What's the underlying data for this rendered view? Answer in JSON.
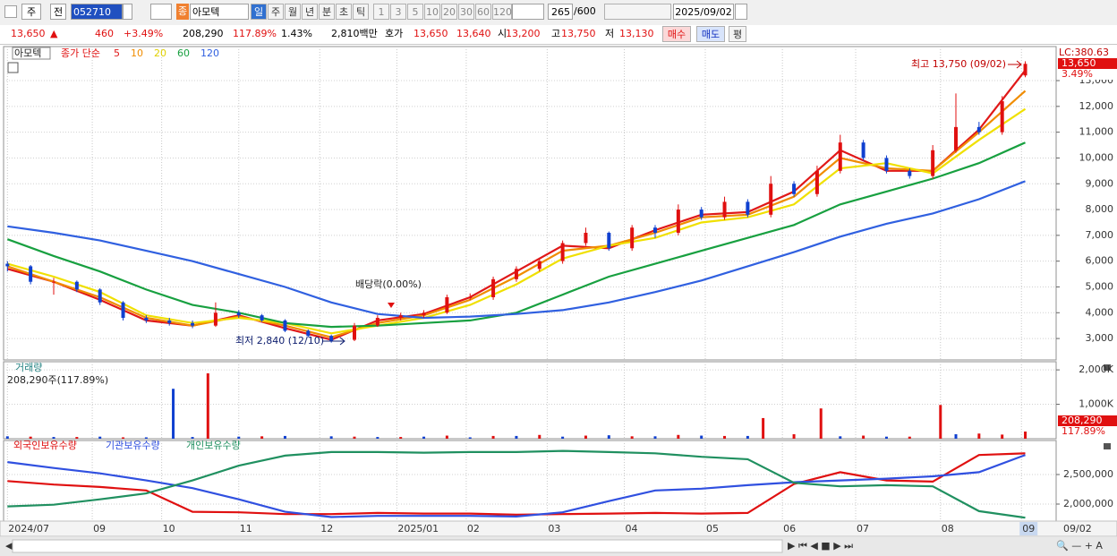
{
  "toolbar": {
    "market": "주",
    "kind": "전",
    "code": "052710",
    "badge": "종",
    "name": "아모텍",
    "periods": [
      "일",
      "주",
      "월",
      "년",
      "분",
      "초",
      "틱"
    ],
    "intervals": [
      "1",
      "3",
      "5",
      "10",
      "20",
      "30",
      "60",
      "120"
    ],
    "count": "265",
    "max": "/600",
    "date": "2025/09/02"
  },
  "quote": {
    "price": "13,650",
    "arrow": "▲",
    "change": "460",
    "rate": "+3.49%",
    "volume": "208,290",
    "volume_ratio": "117.89%",
    "turnover": "1.43%",
    "amount": "2,810백만",
    "hoga_label": "호가",
    "ask": "13,650",
    "bid": "13,640",
    "open_label": "시",
    "open": "13,200",
    "high_label": "고",
    "high": "13,750",
    "low_label": "저",
    "low": "13,130",
    "buy": "매수",
    "sell": "매도",
    "avg": "평"
  },
  "chart_data": [
    {
      "type": "candlestick",
      "title": "아모텍",
      "legend_title": "종가 단순",
      "xlim": [
        -1,
        272
      ],
      "xticks": [
        {
          "value": 0,
          "label": "2024/07"
        },
        {
          "value": 22,
          "label": "09"
        },
        {
          "value": 40,
          "label": "10"
        },
        {
          "value": 60,
          "label": "11"
        },
        {
          "value": 81,
          "label": "12"
        },
        {
          "value": 101,
          "label": "2025/01"
        },
        {
          "value": 119,
          "label": "02"
        },
        {
          "value": 140,
          "label": "03"
        },
        {
          "value": 160,
          "label": "04"
        },
        {
          "value": 181,
          "label": "05"
        },
        {
          "value": 201,
          "label": "06"
        },
        {
          "value": 220,
          "label": "07"
        },
        {
          "value": 242,
          "label": "08"
        },
        {
          "value": 263,
          "label": "09"
        }
      ],
      "x_cursor_label": "09/02",
      "ylim": [
        2170,
        14320
      ],
      "yticks": [
        {
          "value": 3000,
          "label": "3,000"
        },
        {
          "value": 4000,
          "label": "4,000"
        },
        {
          "value": 5000,
          "label": "5,000"
        },
        {
          "value": 6000,
          "label": "6,000"
        },
        {
          "value": 7000,
          "label": "7,000"
        },
        {
          "value": 8000,
          "label": "8,000"
        },
        {
          "value": 9000,
          "label": "9,000"
        },
        {
          "value": 10000,
          "label": "10,000"
        },
        {
          "value": 11000,
          "label": "11,000"
        },
        {
          "value": 12000,
          "label": "12,000"
        },
        {
          "value": 13000,
          "label": "13,000"
        }
      ],
      "up_color": "#e01010",
      "down_color": "#1040d0",
      "candles": {
        "x": [
          0,
          6,
          12,
          18,
          24,
          30,
          36,
          42,
          48,
          54,
          60,
          66,
          72,
          78,
          84,
          90,
          96,
          102,
          108,
          114,
          120,
          126,
          132,
          138,
          144,
          150,
          156,
          162,
          168,
          174,
          180,
          186,
          192,
          198,
          204,
          210,
          216,
          222,
          228,
          234,
          240,
          246,
          252,
          258,
          264
        ],
        "open": [
          5900,
          5800,
          5200,
          5200,
          4900,
          4400,
          3800,
          3700,
          3600,
          3500,
          4000,
          3900,
          3700,
          3300,
          3100,
          2950,
          3500,
          3800,
          3900,
          4000,
          4600,
          4600,
          5300,
          5700,
          6000,
          6700,
          7100,
          6500,
          7300,
          7100,
          8000,
          7700,
          8300,
          7800,
          9000,
          8600,
          9500,
          10600,
          10000,
          9500,
          9300,
          10300,
          11200,
          11000,
          13200
        ],
        "high": [
          6000,
          5850,
          5350,
          5250,
          4950,
          4450,
          3900,
          3800,
          3700,
          4400,
          4100,
          3950,
          3750,
          3350,
          3150,
          3600,
          3900,
          4000,
          4100,
          4700,
          4750,
          5400,
          5800,
          6100,
          6800,
          7300,
          7150,
          7400,
          7400,
          8200,
          8100,
          8500,
          8400,
          9300,
          9100,
          9700,
          10900,
          10700,
          10100,
          9600,
          10500,
          12500,
          11400,
          12400,
          13750
        ],
        "low": [
          5600,
          5100,
          4700,
          4800,
          4300,
          3700,
          3600,
          3500,
          3400,
          3450,
          3800,
          3650,
          3250,
          3050,
          2840,
          2900,
          3450,
          3700,
          3800,
          3950,
          4500,
          4500,
          5200,
          5600,
          5900,
          6600,
          6400,
          6400,
          6900,
          7000,
          7600,
          7600,
          7700,
          7700,
          8500,
          8500,
          9400,
          9900,
          9400,
          9200,
          9200,
          10200,
          10900,
          10900,
          13130
        ],
        "close": [
          5800,
          5200,
          5200,
          4900,
          4400,
          3800,
          3700,
          3600,
          3500,
          4000,
          3900,
          3700,
          3300,
          3100,
          2900,
          3500,
          3800,
          3900,
          4000,
          4600,
          4600,
          5300,
          5700,
          6000,
          6700,
          7100,
          6500,
          7300,
          7100,
          8000,
          7700,
          8300,
          7800,
          9000,
          8600,
          9500,
          10600,
          10000,
          9500,
          9300,
          10300,
          11200,
          11000,
          12200,
          13650
        ]
      },
      "x": [
        0,
        12,
        24,
        36,
        48,
        60,
        72,
        84,
        96,
        108,
        120,
        132,
        144,
        156,
        168,
        180,
        192,
        204,
        216,
        228,
        240,
        252,
        264
      ],
      "series": [
        {
          "name": "5",
          "color": "#e01818",
          "values": [
            5700,
            5200,
            4500,
            3700,
            3500,
            3900,
            3400,
            2950,
            3700,
            3950,
            4600,
            5600,
            6600,
            6500,
            7200,
            7800,
            7900,
            8700,
            10300,
            9500,
            9500,
            11100,
            13400
          ]
        },
        {
          "name": "10",
          "color": "#f08c00",
          "values": [
            5800,
            5200,
            4600,
            3800,
            3500,
            3850,
            3500,
            3050,
            3600,
            3900,
            4500,
            5400,
            6400,
            6600,
            7100,
            7700,
            7800,
            8500,
            10000,
            9600,
            9500,
            11000,
            12600
          ]
        },
        {
          "name": "20",
          "color": "#f0e000",
          "values": [
            5900,
            5400,
            4800,
            3900,
            3600,
            3800,
            3600,
            3200,
            3500,
            3800,
            4300,
            5100,
            6100,
            6600,
            6900,
            7500,
            7700,
            8200,
            9600,
            9800,
            9400,
            10700,
            11900
          ]
        },
        {
          "name": "60",
          "color": "#18a040",
          "values": [
            6850,
            6200,
            5600,
            4900,
            4300,
            4000,
            3600,
            3450,
            3500,
            3600,
            3700,
            4000,
            4700,
            5400,
            5900,
            6400,
            6900,
            7400,
            8200,
            8700,
            9200,
            9800,
            10600
          ]
        },
        {
          "name": "120",
          "color": "#3060e0",
          "values": [
            7350,
            7100,
            6800,
            6400,
            6000,
            5500,
            5000,
            4400,
            3950,
            3800,
            3850,
            3950,
            4100,
            4400,
            4800,
            5250,
            5800,
            6350,
            6950,
            7450,
            7850,
            8400,
            9100
          ]
        }
      ],
      "annotations": {
        "high": "최고 13,750 (09/02)",
        "low": "최저 2,840 (12/10)",
        "dividend": "배당락(0.00%)"
      },
      "right_labels": {
        "lc": "LC:380.63",
        "price": "13,650",
        "rate": "3.49%"
      }
    },
    {
      "type": "bar",
      "title": "거래량",
      "subtitle": "208,290주(117.89%)",
      "ylim": [
        0,
        2237000
      ],
      "yticks": [
        {
          "value": 1000000,
          "label": "1,000K"
        },
        {
          "value": 2000000,
          "label": "2,000K"
        }
      ],
      "series": [
        {
          "color": "#e01010",
          "x": [
            6,
            18,
            30,
            52,
            66,
            90,
            102,
            114,
            126,
            138,
            150,
            162,
            174,
            186,
            196,
            204,
            211,
            222,
            234,
            242,
            252,
            258,
            264
          ],
          "values": [
            60000,
            50000,
            40000,
            1900000,
            70000,
            60000,
            50000,
            90000,
            80000,
            110000,
            90000,
            70000,
            110000,
            80000,
            600000,
            130000,
            880000,
            90000,
            60000,
            980000,
            150000,
            120000,
            208290
          ]
        },
        {
          "color": "#1040d0",
          "x": [
            0,
            12,
            24,
            36,
            43,
            48,
            60,
            72,
            84,
            96,
            108,
            120,
            132,
            144,
            156,
            168,
            180,
            192,
            216,
            228,
            246
          ],
          "values": [
            70000,
            50000,
            60000,
            40000,
            1450000,
            50000,
            60000,
            80000,
            70000,
            50000,
            60000,
            40000,
            80000,
            60000,
            100000,
            70000,
            90000,
            80000,
            70000,
            60000,
            130000
          ]
        }
      ],
      "right_labels": {
        "value": "208,290",
        "ratio": "117.89%"
      }
    },
    {
      "type": "line",
      "ylim": [
        1712000,
        3076000
      ],
      "yticks": [
        {
          "value": 2000000,
          "label": "2,000,000"
        },
        {
          "value": 2500000,
          "label": "2,500,000"
        }
      ],
      "x": [
        0,
        12,
        24,
        36,
        48,
        60,
        72,
        84,
        96,
        108,
        120,
        132,
        144,
        156,
        168,
        180,
        192,
        204,
        216,
        228,
        240,
        252,
        264
      ],
      "series": [
        {
          "name": "외국인보유수량",
          "color": "#e01010",
          "values": [
            2390000,
            2330000,
            2290000,
            2230000,
            1870000,
            1860000,
            1830000,
            1830000,
            1850000,
            1840000,
            1840000,
            1820000,
            1830000,
            1840000,
            1850000,
            1840000,
            1850000,
            2340000,
            2540000,
            2400000,
            2380000,
            2830000,
            2860000
          ]
        },
        {
          "name": "기관보유수량",
          "color": "#3050e0",
          "values": [
            2710000,
            2610000,
            2520000,
            2400000,
            2270000,
            2080000,
            1870000,
            1780000,
            1800000,
            1800000,
            1800000,
            1790000,
            1860000,
            2050000,
            2230000,
            2260000,
            2320000,
            2370000,
            2400000,
            2430000,
            2470000,
            2540000,
            2830000
          ]
        },
        {
          "name": "개인보유수량",
          "color": "#209060",
          "values": [
            1960000,
            1990000,
            2080000,
            2180000,
            2400000,
            2650000,
            2820000,
            2880000,
            2880000,
            2870000,
            2880000,
            2880000,
            2900000,
            2880000,
            2860000,
            2800000,
            2760000,
            2360000,
            2300000,
            2320000,
            2300000,
            1880000,
            1770000
          ]
        }
      ]
    }
  ]
}
